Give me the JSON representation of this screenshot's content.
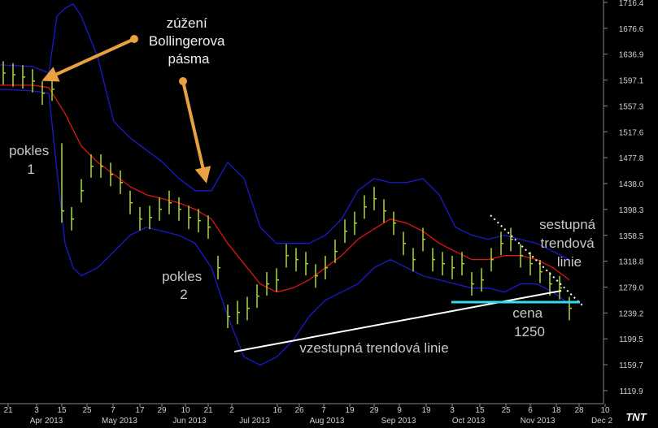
{
  "chart_data": {
    "type": "ohlc",
    "ylim": [
      1099.9,
      1720.1
    ],
    "xlim": [
      0,
      185.5
    ],
    "yticks": [
      1119.9,
      1159.7,
      1199.5,
      1239.2,
      {
        "value": 1279.0,
        "label": "1279.0"
      },
      1318.8,
      1358.5,
      1398.3,
      {
        "value": 1438.0,
        "label": "1438.0"
      },
      1477.8,
      1517.6,
      1557.3,
      1597.1,
      1636.9,
      1676.6,
      1716.4
    ],
    "xticks": [
      {
        "value": 2.5,
        "label": "21"
      },
      {
        "value": 11.25,
        "label": "3"
      },
      {
        "value": 19,
        "label": "15"
      },
      {
        "value": 26.75,
        "label": "25"
      },
      {
        "value": 34.75,
        "label": "7"
      },
      {
        "value": 43,
        "label": "17"
      },
      {
        "value": 49.75,
        "label": "29"
      },
      {
        "value": 57,
        "label": "10"
      },
      {
        "value": 64,
        "label": "21"
      },
      {
        "value": 71.25,
        "label": "2"
      },
      {
        "value": 85.25,
        "label": "16"
      },
      {
        "value": 92,
        "label": "26"
      },
      {
        "value": 99.5,
        "label": "7"
      },
      {
        "value": 107.5,
        "label": "19"
      },
      {
        "value": 115,
        "label": "29"
      },
      {
        "value": 122.75,
        "label": "9"
      },
      {
        "value": 131,
        "label": "19"
      },
      {
        "value": 139,
        "label": "3"
      },
      {
        "value": 147.5,
        "label": "15"
      },
      {
        "value": 155.5,
        "label": "25"
      },
      {
        "value": 163,
        "label": "6"
      },
      {
        "value": 171,
        "label": "18"
      },
      {
        "value": 178,
        "label": "28"
      },
      {
        "value": 186,
        "label": "10"
      }
    ],
    "month_ticks": [
      {
        "value": 14.25,
        "label": "Apr 2013"
      },
      {
        "value": 36.75,
        "label": "May 2013"
      },
      {
        "value": 58.25,
        "label": "Jun 2013"
      },
      {
        "value": 78.25,
        "label": "Jul 2013"
      },
      {
        "value": 100.5,
        "label": "Aug 2013"
      },
      {
        "value": 122.5,
        "label": "Sep 2013"
      },
      {
        "value": 144,
        "label": "Oct 2013"
      },
      {
        "value": 165.25,
        "label": "Nov 2013"
      },
      {
        "value": 185,
        "label": "Dec 2"
      }
    ],
    "ohlc": {
      "color": "#a8dc2a",
      "x": [
        1,
        4,
        7,
        10,
        13,
        16,
        19,
        22,
        25,
        28,
        31,
        34,
        37,
        40,
        43,
        46,
        49,
        52,
        55,
        58,
        61,
        64,
        67,
        70,
        73,
        76,
        79,
        82,
        85,
        88,
        91,
        94,
        97,
        100,
        103,
        106,
        109,
        112,
        115,
        118,
        121,
        124,
        127,
        130,
        133,
        136,
        139,
        142,
        145,
        148,
        151,
        154,
        157,
        160,
        163,
        166,
        169,
        172,
        175
      ],
      "high": [
        1626,
        1623,
        1620,
        1614,
        1595,
        1601,
        1500,
        1402,
        1445,
        1483,
        1483,
        1470,
        1458,
        1427,
        1402,
        1404,
        1417,
        1427,
        1417,
        1404,
        1399,
        1389,
        1327,
        1252,
        1258,
        1264,
        1283,
        1302,
        1308,
        1345,
        1339,
        1333,
        1314,
        1327,
        1352,
        1383,
        1395,
        1420,
        1433,
        1414,
        1395,
        1364,
        1339,
        1370,
        1339,
        1333,
        1327,
        1333,
        1302,
        1308,
        1339,
        1364,
        1370,
        1345,
        1333,
        1321,
        1302,
        1296,
        1264
      ],
      "low": [
        1590,
        1587,
        1584,
        1578,
        1559,
        1565,
        1378,
        1366,
        1409,
        1447,
        1447,
        1434,
        1422,
        1391,
        1366,
        1368,
        1381,
        1391,
        1381,
        1368,
        1363,
        1353,
        1291,
        1216,
        1222,
        1228,
        1247,
        1266,
        1272,
        1309,
        1303,
        1297,
        1278,
        1291,
        1316,
        1347,
        1359,
        1384,
        1397,
        1378,
        1359,
        1328,
        1303,
        1334,
        1303,
        1297,
        1291,
        1297,
        1266,
        1272,
        1303,
        1328,
        1334,
        1309,
        1297,
        1285,
        1266,
        1260,
        1228
      ],
      "close": [
        1607.9,
        1605.4,
        1601.7,
        1595.5,
        1576.8,
        1583.0,
        1396.0,
        1383.5,
        1427.2,
        1464.6,
        1464.6,
        1452.1,
        1439.6,
        1408.5,
        1383.5,
        1386.0,
        1398.5,
        1408.5,
        1398.5,
        1386.0,
        1381.0,
        1371.1,
        1308.7,
        1233.9,
        1240.2,
        1246.4,
        1265.1,
        1283.8,
        1290.0,
        1327.4,
        1321.2,
        1315.0,
        1296.3,
        1308.7,
        1333.7,
        1364.8,
        1377.3,
        1402.2,
        1414.7,
        1396.0,
        1377.3,
        1346.1,
        1321.2,
        1352.4,
        1321.2,
        1315.0,
        1308.7,
        1315.0,
        1283.8,
        1290.0,
        1321.2,
        1346.1,
        1352.4,
        1327.4,
        1315.0,
        1302.5,
        1283.8,
        1277.6,
        1246.4
      ]
    },
    "bands": [
      {
        "color": "#e01414",
        "x": [
          0,
          10,
          15,
          20,
          25,
          30,
          35,
          40,
          45,
          50,
          55,
          60,
          65,
          70,
          75,
          80,
          85,
          90,
          95,
          100,
          105,
          110,
          115,
          120,
          125,
          130,
          135,
          140,
          145,
          150,
          155,
          160,
          165,
          170,
          175
        ],
        "values": [
          1589.2,
          1589.2,
          1585.5,
          1545.6,
          1495.7,
          1470.8,
          1452.1,
          1433.4,
          1420.9,
          1414.7,
          1408.4,
          1398.5,
          1383.5,
          1346.1,
          1314.9,
          1283.8,
          1271.3,
          1277.5,
          1290.0,
          1308.7,
          1327.4,
          1352.3,
          1368.5,
          1383.5,
          1377.3,
          1364.8,
          1346.1,
          1333.6,
          1321.2,
          1321.2,
          1327.4,
          1327.4,
          1321.2,
          1308.7,
          1290.0
        ]
      },
      {
        "color": "#1a1ad0",
        "x": [
          0,
          10,
          15,
          17.5,
          20,
          22.5,
          25,
          30,
          35,
          40,
          45,
          50,
          55,
          60,
          65,
          70,
          75,
          80,
          85,
          90,
          95,
          100,
          105,
          110,
          115,
          120,
          125,
          130,
          135,
          140,
          145,
          150,
          155,
          160,
          165,
          170,
          175
        ],
        "values": [
          1620.4,
          1617.9,
          1607.9,
          1695.2,
          1707.6,
          1713.9,
          1695.2,
          1632.8,
          1533.1,
          1508.2,
          1489.5,
          1470.8,
          1445.8,
          1427.1,
          1427.1,
          1470.8,
          1445.8,
          1371.0,
          1346.1,
          1346.1,
          1346.1,
          1358.6,
          1383.5,
          1427.1,
          1445.8,
          1439.6,
          1439.6,
          1445.8,
          1420.9,
          1371.0,
          1358.6,
          1352.3,
          1358.6,
          1352.3,
          1346.1,
          1333.6,
          1321.2
        ]
      },
      {
        "color": "#1a1ad0",
        "x": [
          0,
          10,
          15,
          17.5,
          20,
          22.5,
          25,
          30,
          35,
          40,
          45,
          50,
          55,
          60,
          65,
          70,
          75,
          80,
          85,
          90,
          95,
          100,
          105,
          110,
          115,
          120,
          125,
          130,
          135,
          140,
          145,
          150,
          155,
          160,
          165,
          170,
          175
        ],
        "values": [
          1583.0,
          1580.5,
          1576.7,
          1458.3,
          1346.1,
          1308.7,
          1296.2,
          1308.7,
          1333.6,
          1358.6,
          1371.0,
          1364.8,
          1358.6,
          1346.1,
          1308.7,
          1233.9,
          1171.6,
          1159.1,
          1171.6,
          1196.5,
          1233.9,
          1258.8,
          1271.3,
          1283.8,
          1308.7,
          1321.2,
          1308.7,
          1296.2,
          1290.0,
          1283.8,
          1277.5,
          1277.5,
          1271.3,
          1283.8,
          1283.8,
          1271.3,
          1252.6
        ]
      }
    ],
    "annotations": [
      {
        "lines": [
          "zúžení",
          "Bollingerova",
          "pásma"
        ]
      },
      {
        "lines": [
          "pokles",
          "1"
        ]
      },
      {
        "lines": [
          "pokles",
          "2"
        ]
      },
      {
        "lines": [
          "sestupná",
          "trendová",
          "linie"
        ]
      },
      {
        "lines": [
          "cena",
          "1250"
        ]
      },
      {
        "lines": [
          "vzestupná trendová linie"
        ]
      }
    ],
    "logo": "TNT"
  }
}
